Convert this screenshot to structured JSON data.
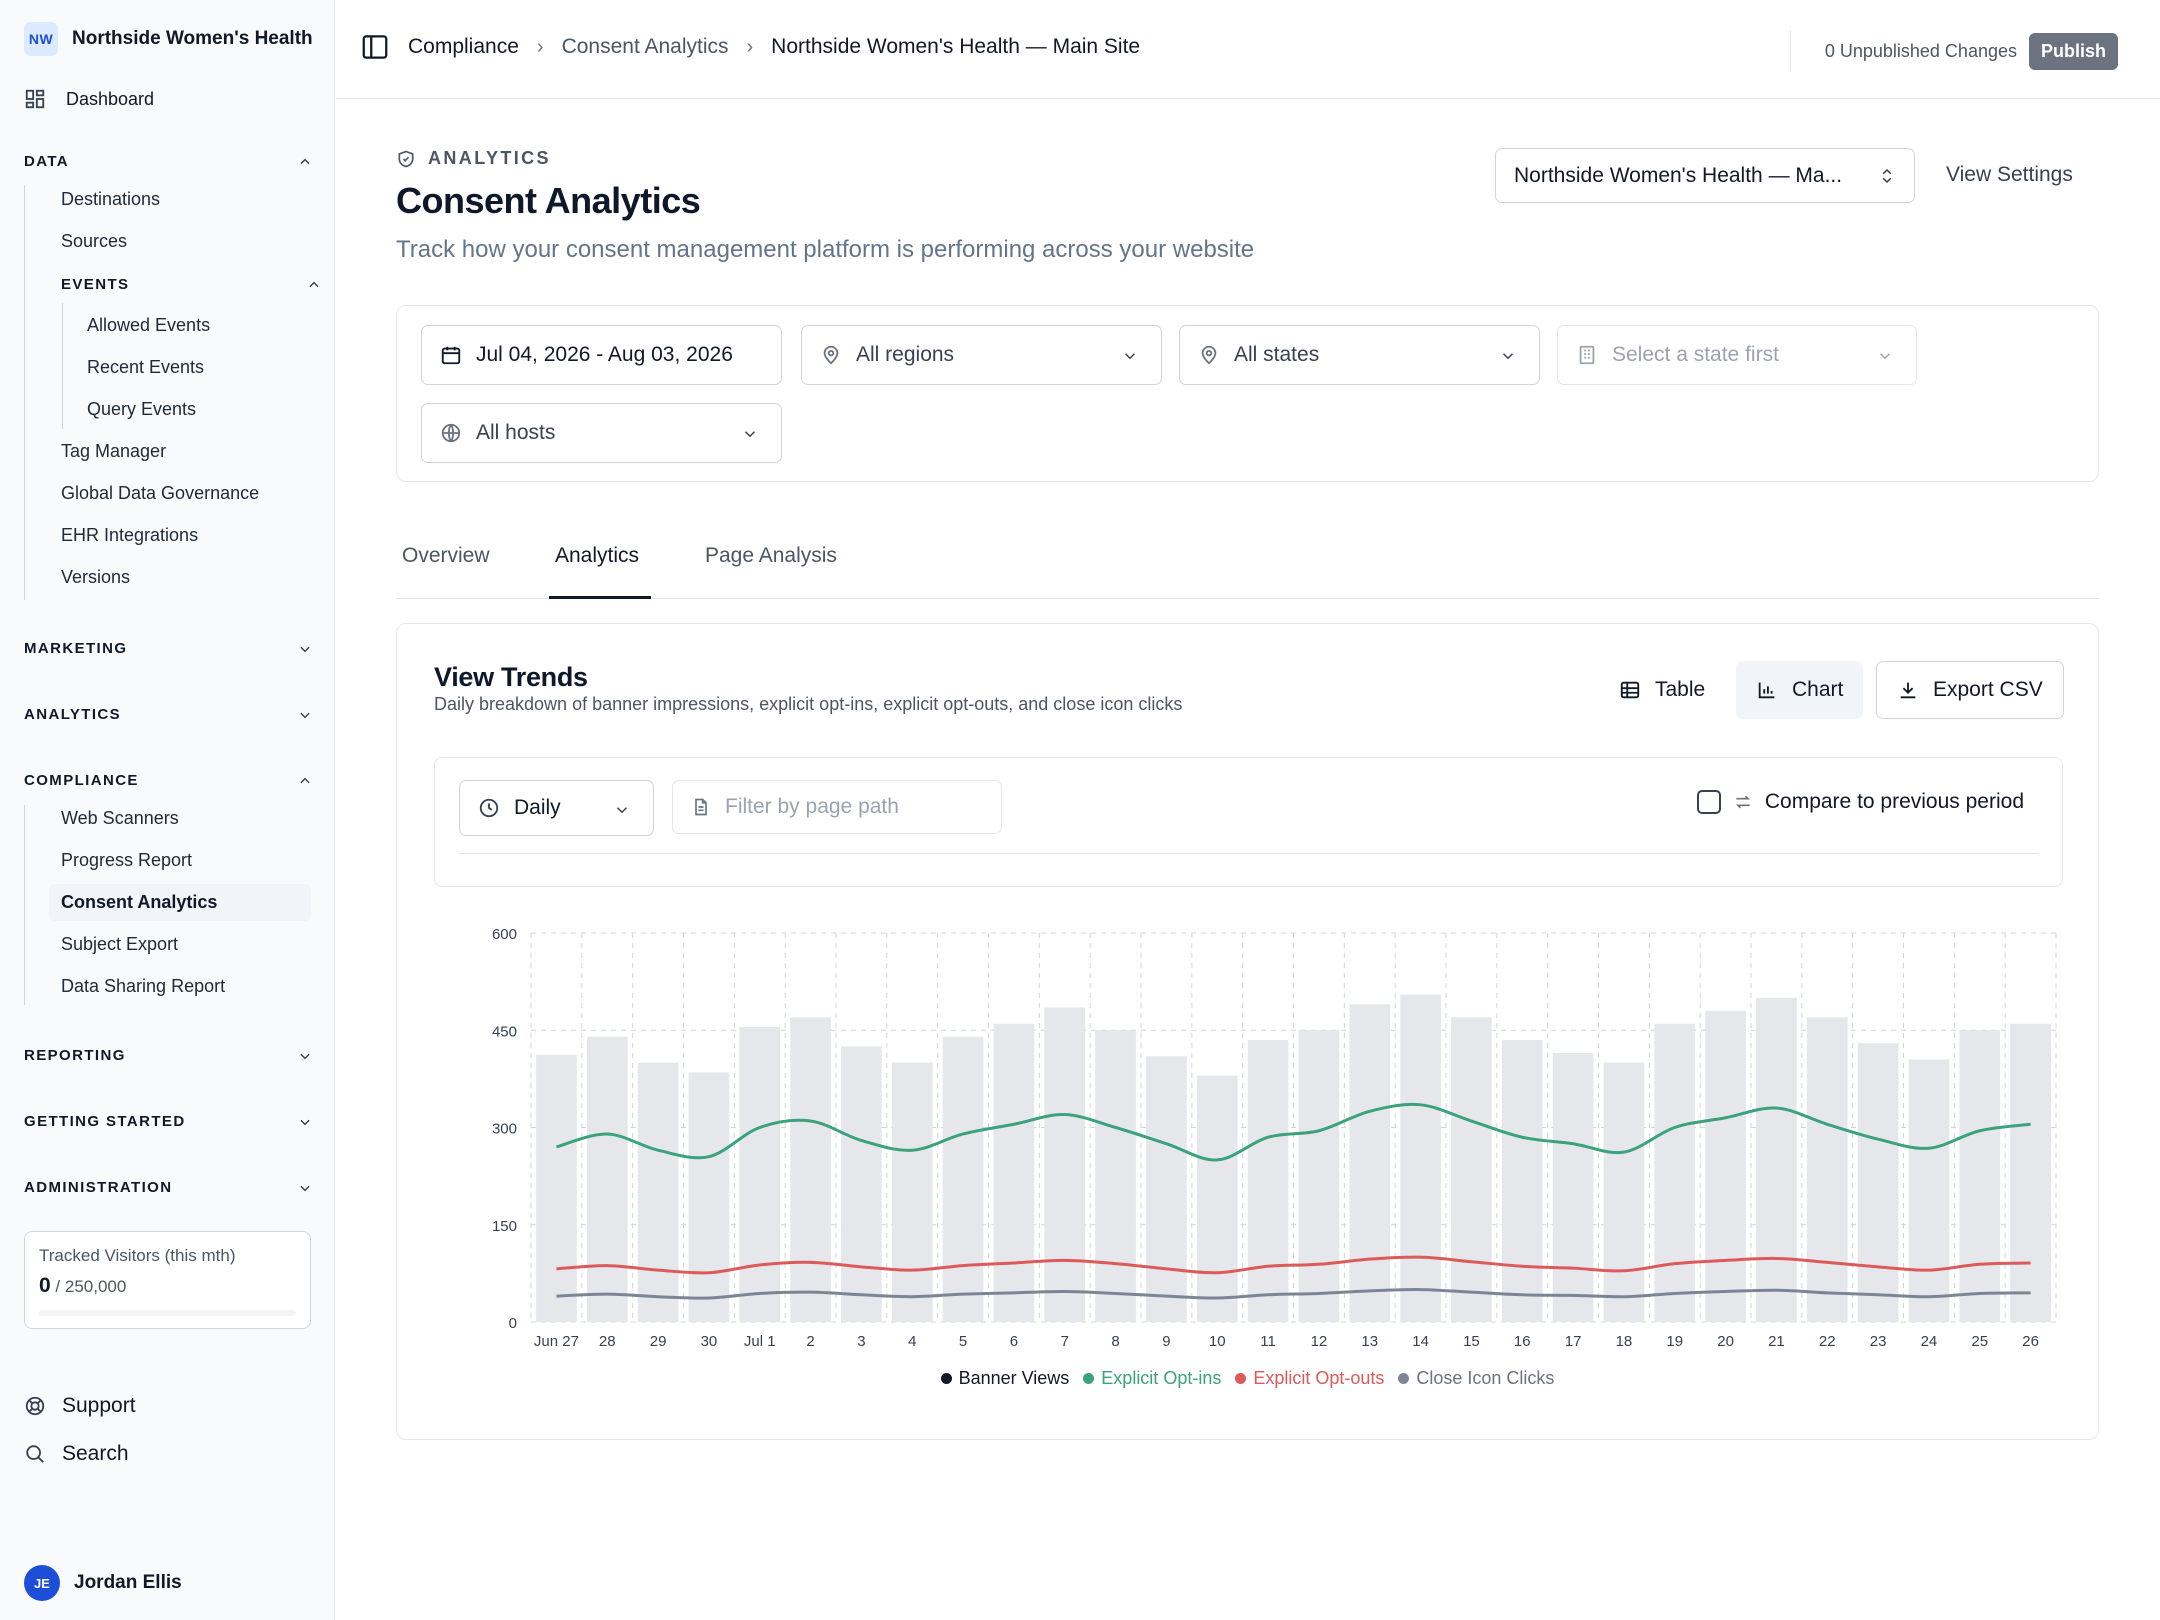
{
  "org": {
    "initials": "NW",
    "name": "Northside Women's Health"
  },
  "nav": {
    "dashboard": "Dashboard",
    "data_section": "DATA",
    "data_items": [
      "Destinations",
      "Sources"
    ],
    "events_section": "EVENTS",
    "events_items": [
      "Allowed Events",
      "Recent Events",
      "Query Events"
    ],
    "data_items_2": [
      "Tag Manager",
      "Global Data Governance",
      "EHR Integrations",
      "Versions"
    ],
    "marketing": "MARKETING",
    "analytics": "ANALYTICS",
    "compliance": "COMPLIANCE",
    "compliance_items": [
      "Web Scanners",
      "Progress Report",
      "Consent Analytics",
      "Subject Export",
      "Data Sharing Report"
    ],
    "reporting": "REPORTING",
    "getting_started": "GETTING STARTED",
    "administration": "ADMINISTRATION"
  },
  "visitors": {
    "label": "Tracked Visitors (this mth)",
    "value": "0",
    "limit": "/ 250,000",
    "fraction": 0
  },
  "footer": {
    "support": "Support",
    "search": "Search"
  },
  "user": {
    "initials": "JE",
    "name": "Jordan Ellis"
  },
  "breadcrumb": [
    "Compliance",
    "Consent Analytics",
    "Northside Women's Health — Main Site"
  ],
  "unpublished": "0 Unpublished Changes",
  "publish": "Publish",
  "page": {
    "eyebrow": "ANALYTICS",
    "title": "Consent Analytics",
    "description": "Track how your consent management platform is performing across your website",
    "site_select": "Northside Women's Health — Ma...",
    "view_settings": "View Settings"
  },
  "filters": {
    "date_range": "Jul 04, 2026 - Aug 03, 2026",
    "regions": "All regions",
    "states": "All states",
    "city": "Select a state first",
    "hosts": "All hosts"
  },
  "tabs": [
    "Overview",
    "Analytics",
    "Page Analysis"
  ],
  "card": {
    "title": "View Trends",
    "subtitle": "Daily breakdown of banner impressions, explicit opt-ins, explicit opt-outs, and close icon clicks",
    "table_btn": "Table",
    "chart_btn": "Chart",
    "export_btn": "Export CSV",
    "granularity": "Daily",
    "path_placeholder": "Filter by page path",
    "compare": "Compare to previous period"
  },
  "chart_data": {
    "type": "bar",
    "categories": [
      "Jun 27",
      "28",
      "29",
      "30",
      "Jul 1",
      "2",
      "3",
      "4",
      "5",
      "6",
      "7",
      "8",
      "9",
      "10",
      "11",
      "12",
      "13",
      "14",
      "15",
      "16",
      "17",
      "18",
      "19",
      "20",
      "21",
      "22",
      "23",
      "24",
      "25",
      "26"
    ],
    "ylim": [
      0,
      600
    ],
    "yticks": [
      0,
      150,
      300,
      450,
      600
    ],
    "grid": true,
    "legend_position": "bottom",
    "series": [
      {
        "name": "Banner Views",
        "kind": "bar",
        "color": "#e5e7eb",
        "legend_color": "#111827",
        "values": [
          412,
          440,
          400,
          385,
          455,
          470,
          425,
          400,
          440,
          460,
          485,
          450,
          410,
          380,
          435,
          450,
          490,
          505,
          470,
          435,
          415,
          400,
          460,
          480,
          500,
          470,
          430,
          405,
          450,
          460
        ]
      },
      {
        "name": "Explicit Opt-ins",
        "kind": "line",
        "color": "#3aa37c",
        "values": [
          270,
          290,
          265,
          255,
          300,
          310,
          280,
          265,
          290,
          305,
          320,
          300,
          275,
          250,
          285,
          295,
          325,
          335,
          310,
          285,
          275,
          262,
          300,
          315,
          330,
          305,
          282,
          268,
          295,
          305
        ]
      },
      {
        "name": "Explicit Opt-outs",
        "kind": "line",
        "color": "#dc5a5a",
        "values": [
          82,
          87,
          80,
          76,
          88,
          92,
          85,
          80,
          87,
          91,
          95,
          90,
          82,
          76,
          86,
          89,
          97,
          100,
          93,
          86,
          83,
          79,
          90,
          95,
          98,
          92,
          85,
          80,
          89,
          91
        ]
      },
      {
        "name": "Close Icon Clicks",
        "kind": "line",
        "color": "#7c8595",
        "values": [
          40,
          43,
          39,
          37,
          44,
          46,
          42,
          39,
          43,
          45,
          47,
          44,
          40,
          37,
          42,
          44,
          48,
          50,
          46,
          42,
          41,
          39,
          44,
          47,
          49,
          45,
          42,
          39,
          44,
          45
        ]
      }
    ]
  }
}
